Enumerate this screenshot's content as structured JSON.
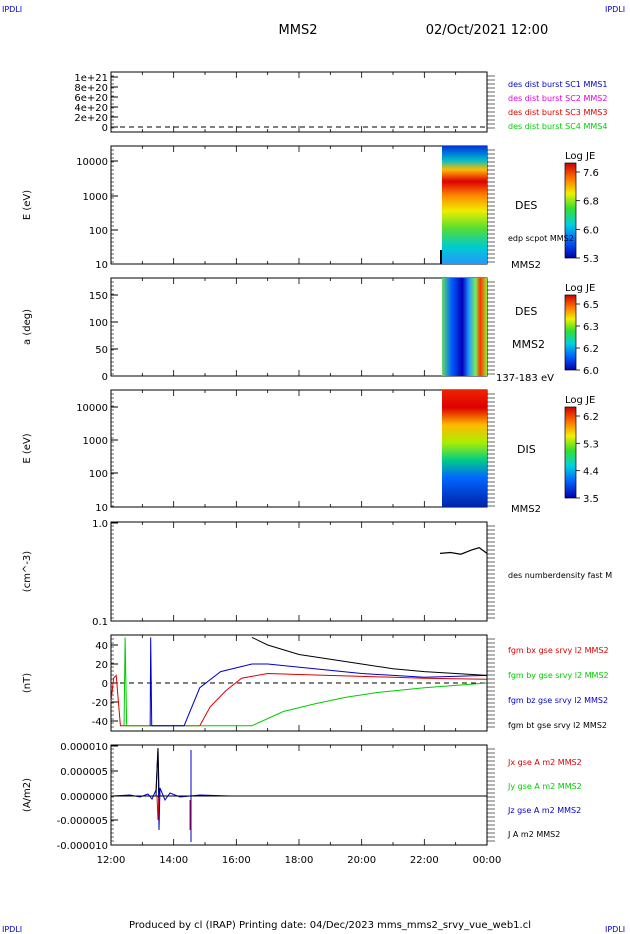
{
  "header": {
    "corner_left": "IPDLI",
    "corner_right": "IPDLI",
    "spacecraft": "MMS2",
    "datetime": "02/Oct/2021 12:00"
  },
  "footer": {
    "text": "Produced by cl (IRAP)   Printing date: 04/Dec/2023   mms_mms2_srvy_vue_web1.cl",
    "corner_left": "IPDLI",
    "corner_right": "IPDLI"
  },
  "colors": {
    "blue": "#0000cc",
    "magenta": "#dd00dd",
    "red": "#dd0000",
    "green": "#00cc00",
    "black": "#000000"
  },
  "chart_data": [
    {
      "type": "line",
      "id": "panel1",
      "ylabel": "",
      "ytick_labels": [
        "0",
        "2e+20",
        "4e+20",
        "6e+20",
        "8e+20",
        "1e+21"
      ],
      "ylim": [
        0,
        1.1e+21
      ],
      "series": [
        {
          "name": "des dist burst SC1 MMS1",
          "color": "#0000cc"
        },
        {
          "name": "des dist burst SC2 MMS2",
          "color": "#dd00dd"
        },
        {
          "name": "des dist burst SC3 MMS3",
          "color": "#dd0000"
        },
        {
          "name": "des dist burst SC4 MMS4",
          "color": "#00cc00"
        }
      ],
      "reference_line": 0
    },
    {
      "type": "heatmap",
      "id": "panel2",
      "ylabel": "E (eV)",
      "scale": "log",
      "ytick_labels": [
        "10",
        "100",
        "1000",
        "10000"
      ],
      "ylim": [
        10,
        25000
      ],
      "data_start": "22:30",
      "right_labels": [
        "DES",
        "edp scpot MMS2",
        "MMS2"
      ],
      "colorbar": {
        "title": "Log JE",
        "ticks": [
          "7.6",
          "6.8",
          "6.0",
          "5.3"
        ]
      }
    },
    {
      "type": "heatmap",
      "id": "panel3",
      "ylabel": "a (deg)",
      "ytick_labels": [
        "0",
        "50",
        "100",
        "150"
      ],
      "ylim": [
        0,
        180
      ],
      "data_start": "22:30",
      "right_labels": [
        "DES",
        "MMS2",
        "137-183 eV"
      ],
      "colorbar": {
        "title": "Log JE",
        "ticks": [
          "6.5",
          "6.3",
          "6.2",
          "6.0"
        ]
      }
    },
    {
      "type": "heatmap",
      "id": "panel4",
      "ylabel": "E (eV)",
      "scale": "log",
      "ytick_labels": [
        "10",
        "100",
        "1000",
        "10000"
      ],
      "ylim": [
        10,
        25000
      ],
      "data_start": "22:30",
      "right_labels": [
        "DIS",
        "MMS2"
      ],
      "colorbar": {
        "title": "Log JE",
        "ticks": [
          "6.2",
          "5.3",
          "4.4",
          "3.5"
        ]
      }
    },
    {
      "type": "line",
      "id": "panel5",
      "ylabel": "(cm^-3)",
      "scale": "log",
      "ytick_labels": [
        "0.1",
        "1.0"
      ],
      "ylim": [
        0.1,
        1.0
      ],
      "series": [
        {
          "name": "des numberdensity fast M",
          "color": "#000000",
          "x": [
            "22:30",
            "22:50",
            "23:10",
            "23:30",
            "23:45",
            "24:00"
          ],
          "y": [
            0.49,
            0.5,
            0.48,
            0.53,
            0.56,
            0.49
          ]
        }
      ]
    },
    {
      "type": "line",
      "id": "panel6",
      "ylabel": "(nT)",
      "ytick_labels": [
        "-40",
        "-20",
        "0",
        "20",
        "40"
      ],
      "ylim": [
        -50,
        50
      ],
      "reference_line": 0,
      "series": [
        {
          "name": "fgm bx gse srvy l2 MMS2",
          "color": "#dd0000",
          "x": [
            "12:00",
            "12:05",
            "12:10",
            "12:18",
            "14:50",
            "15:10",
            "15:40",
            "16:10",
            "17:00",
            "18:00",
            "20:00",
            "22:00",
            "24:00"
          ],
          "y": [
            -20,
            5,
            8,
            -45,
            -45,
            -25,
            -8,
            5,
            10,
            9,
            7,
            5,
            4
          ]
        },
        {
          "name": "fgm by gse srvy l2 MMS2",
          "color": "#00cc00",
          "x": [
            "12:25",
            "12:27",
            "12:30",
            "16:30",
            "17:30",
            "18:30",
            "19:30",
            "20:30",
            "22:00",
            "24:00"
          ],
          "y": [
            -45,
            48,
            -45,
            -45,
            -30,
            -22,
            -15,
            -10,
            -5,
            0
          ]
        },
        {
          "name": "fgm bz gse srvy l2 MMS2",
          "color": "#0000cc",
          "x": [
            "13:15",
            "13:16",
            "13:18",
            "14:20",
            "14:50",
            "15:30",
            "16:30",
            "17:00",
            "18:30",
            "20:00",
            "22:00",
            "24:00"
          ],
          "y": [
            -45,
            48,
            -45,
            -45,
            -5,
            12,
            20,
            20,
            15,
            10,
            6,
            8
          ]
        },
        {
          "name": "fgm bt gse srvy l2 MMS2",
          "color": "#000000",
          "x": [
            "16:30",
            "17:00",
            "17:30",
            "18:00",
            "19:00",
            "20:00",
            "21:00",
            "22:00",
            "23:00",
            "24:00"
          ],
          "y": [
            48,
            40,
            35,
            30,
            25,
            20,
            15,
            12,
            10,
            8
          ]
        }
      ]
    },
    {
      "type": "line",
      "id": "panel7",
      "ylabel": "(A/m2)",
      "ytick_labels": [
        "-0.000010",
        "-0.000005",
        "0.000000",
        "0.000005",
        "0.000010"
      ],
      "ylim": [
        -1e-05,
        1e-05
      ],
      "series": [
        {
          "name": "Jx gse A m2 MMS2",
          "color": "#dd0000"
        },
        {
          "name": "Jy gse A m2 MMS2",
          "color": "#00cc00"
        },
        {
          "name": "Jz gse A m2 MMS2",
          "color": "#0000cc"
        },
        {
          "name": "J A m2 MMS2",
          "color": "#000000"
        }
      ]
    }
  ],
  "xaxis": {
    "tick_labels": [
      "12:00",
      "14:00",
      "16:00",
      "18:00",
      "20:00",
      "22:00",
      "00:00"
    ]
  }
}
